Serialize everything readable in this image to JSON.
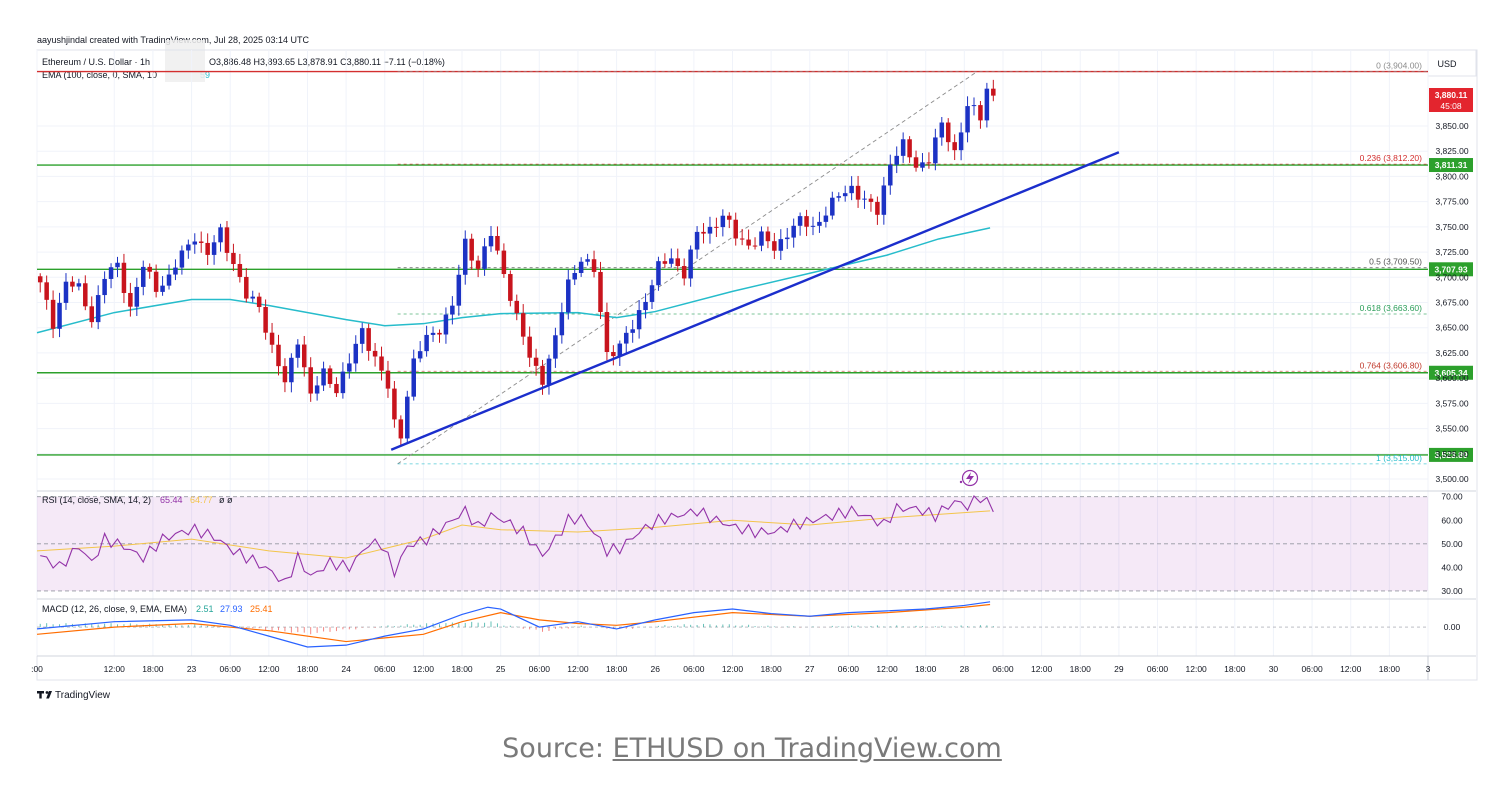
{
  "header": {
    "author_line": "aayushjindal created with TradingView.com, Jul 28, 2025 03:14 UTC",
    "symbol": "Ethereum / U.S. Dollar · 1h",
    "ohlc": "O3,886.48  H3,893.65  L3,878.91  C3,880.11  −7.11 (−0.18%)",
    "ema_label": "EMA (100, close, 0, SMA, 10",
    "ema_value": "59"
  },
  "currency": "USD",
  "brand": "TradingView",
  "caption": {
    "prefix": "Source: ",
    "link": "ETHUSD on TradingView.com"
  },
  "colors": {
    "candle_up": "#1c32c4",
    "candle_down": "#c8141d",
    "ema": "#26bccb",
    "trendline": "#1b2ecc",
    "support": "#2ca02c",
    "resistance": "#d32f2f",
    "rsi": "#9333a8",
    "rsi_ma": "#f3c54a",
    "macd": "#2962ff",
    "signal": "#ff6d00"
  },
  "chart_data": {
    "type": "candlestick",
    "interval": "1h",
    "ylim": [
      3488,
      3920
    ],
    "y_ticks": [
      "3,850.00",
      "3,825.00",
      "3,800.00",
      "3,775.00",
      "3,750.00",
      "3,725.00",
      "3,700.00",
      "3,675.00",
      "3,650.00",
      "3,625.00",
      "3,600.00",
      "3,575.00",
      "3,550.00",
      "3,525.00",
      "3,500.00"
    ],
    "x_ticks": [
      {
        "label": ":00",
        "hour": 0
      },
      {
        "label": "12:00",
        "hour": 12
      },
      {
        "label": "18:00",
        "hour": 18
      },
      {
        "label": "23",
        "hour": 24
      },
      {
        "label": "06:00",
        "hour": 30
      },
      {
        "label": "12:00",
        "hour": 36
      },
      {
        "label": "18:00",
        "hour": 42
      },
      {
        "label": "24",
        "hour": 48
      },
      {
        "label": "06:00",
        "hour": 54
      },
      {
        "label": "12:00",
        "hour": 60
      },
      {
        "label": "18:00",
        "hour": 66
      },
      {
        "label": "25",
        "hour": 72
      },
      {
        "label": "06:00",
        "hour": 78
      },
      {
        "label": "12:00",
        "hour": 84
      },
      {
        "label": "18:00",
        "hour": 90
      },
      {
        "label": "26",
        "hour": 96
      },
      {
        "label": "06:00",
        "hour": 102
      },
      {
        "label": "12:00",
        "hour": 108
      },
      {
        "label": "18:00",
        "hour": 114
      },
      {
        "label": "27",
        "hour": 120
      },
      {
        "label": "06:00",
        "hour": 126
      },
      {
        "label": "12:00",
        "hour": 132
      },
      {
        "label": "18:00",
        "hour": 138
      },
      {
        "label": "28",
        "hour": 144
      },
      {
        "label": "06:00",
        "hour": 150
      },
      {
        "label": "12:00",
        "hour": 156
      },
      {
        "label": "18:00",
        "hour": 162
      },
      {
        "label": "29",
        "hour": 168
      },
      {
        "label": "06:00",
        "hour": 174
      },
      {
        "label": "12:00",
        "hour": 180
      },
      {
        "label": "18:00",
        "hour": 186
      },
      {
        "label": "30",
        "hour": 192
      },
      {
        "label": "06:00",
        "hour": 198
      },
      {
        "label": "12:00",
        "hour": 204
      },
      {
        "label": "18:00",
        "hour": 210
      },
      {
        "label": "3",
        "hour": 216
      }
    ],
    "anchors": [
      {
        "hour": 0,
        "price": 3692
      },
      {
        "hour": 2,
        "price": 3655
      },
      {
        "hour": 4,
        "price": 3695
      },
      {
        "hour": 6,
        "price": 3688
      },
      {
        "hour": 8,
        "price": 3660
      },
      {
        "hour": 10,
        "price": 3700
      },
      {
        "hour": 12,
        "price": 3712
      },
      {
        "hour": 14,
        "price": 3670
      },
      {
        "hour": 16,
        "price": 3710
      },
      {
        "hour": 18,
        "price": 3690
      },
      {
        "hour": 20,
        "price": 3700
      },
      {
        "hour": 22,
        "price": 3722
      },
      {
        "hour": 24,
        "price": 3742
      },
      {
        "hour": 26,
        "price": 3722
      },
      {
        "hour": 28,
        "price": 3745
      },
      {
        "hour": 30,
        "price": 3715
      },
      {
        "hour": 32,
        "price": 3680
      },
      {
        "hour": 34,
        "price": 3672
      },
      {
        "hour": 36,
        "price": 3630
      },
      {
        "hour": 38,
        "price": 3594
      },
      {
        "hour": 40,
        "price": 3640
      },
      {
        "hour": 42,
        "price": 3582
      },
      {
        "hour": 44,
        "price": 3605
      },
      {
        "hour": 46,
        "price": 3590
      },
      {
        "hour": 48,
        "price": 3615
      },
      {
        "hour": 50,
        "price": 3648
      },
      {
        "hour": 52,
        "price": 3620
      },
      {
        "hour": 54,
        "price": 3590
      },
      {
        "hour": 55,
        "price": 3555
      },
      {
        "hour": 56,
        "price": 3545
      },
      {
        "hour": 57,
        "price": 3585
      },
      {
        "hour": 58,
        "price": 3615
      },
      {
        "hour": 60,
        "price": 3640
      },
      {
        "hour": 62,
        "price": 3650
      },
      {
        "hour": 64,
        "price": 3670
      },
      {
        "hour": 66,
        "price": 3735
      },
      {
        "hour": 68,
        "price": 3710
      },
      {
        "hour": 70,
        "price": 3742
      },
      {
        "hour": 72,
        "price": 3705
      },
      {
        "hour": 74,
        "price": 3660
      },
      {
        "hour": 76,
        "price": 3620
      },
      {
        "hour": 78,
        "price": 3600
      },
      {
        "hour": 80,
        "price": 3638
      },
      {
        "hour": 82,
        "price": 3695
      },
      {
        "hour": 84,
        "price": 3720
      },
      {
        "hour": 86,
        "price": 3705
      },
      {
        "hour": 88,
        "price": 3625
      },
      {
        "hour": 90,
        "price": 3632
      },
      {
        "hour": 92,
        "price": 3650
      },
      {
        "hour": 94,
        "price": 3680
      },
      {
        "hour": 96,
        "price": 3710
      },
      {
        "hour": 98,
        "price": 3718
      },
      {
        "hour": 100,
        "price": 3705
      },
      {
        "hour": 102,
        "price": 3742
      },
      {
        "hour": 104,
        "price": 3748
      },
      {
        "hour": 106,
        "price": 3762
      },
      {
        "hour": 108,
        "price": 3740
      },
      {
        "hour": 110,
        "price": 3733
      },
      {
        "hour": 112,
        "price": 3740
      },
      {
        "hour": 114,
        "price": 3728
      },
      {
        "hour": 116,
        "price": 3745
      },
      {
        "hour": 118,
        "price": 3755
      },
      {
        "hour": 120,
        "price": 3750
      },
      {
        "hour": 122,
        "price": 3765
      },
      {
        "hour": 124,
        "price": 3780
      },
      {
        "hour": 126,
        "price": 3790
      },
      {
        "hour": 128,
        "price": 3775
      },
      {
        "hour": 130,
        "price": 3765
      },
      {
        "hour": 132,
        "price": 3815
      },
      {
        "hour": 134,
        "price": 3830
      },
      {
        "hour": 136,
        "price": 3810
      },
      {
        "hour": 138,
        "price": 3818
      },
      {
        "hour": 140,
        "price": 3850
      },
      {
        "hour": 142,
        "price": 3825
      },
      {
        "hour": 144,
        "price": 3870
      },
      {
        "hour": 146,
        "price": 3858
      },
      {
        "hour": 147,
        "price": 3888
      },
      {
        "hour": 148,
        "price": 3880
      }
    ],
    "ema100": [
      {
        "hour": 0,
        "price": 3645
      },
      {
        "hour": 12,
        "price": 3665
      },
      {
        "hour": 24,
        "price": 3678
      },
      {
        "hour": 30,
        "price": 3678
      },
      {
        "hour": 36,
        "price": 3672
      },
      {
        "hour": 48,
        "price": 3658
      },
      {
        "hour": 54,
        "price": 3652
      },
      {
        "hour": 60,
        "price": 3654
      },
      {
        "hour": 66,
        "price": 3660
      },
      {
        "hour": 72,
        "price": 3664
      },
      {
        "hour": 84,
        "price": 3665
      },
      {
        "hour": 90,
        "price": 3660
      },
      {
        "hour": 96,
        "price": 3666
      },
      {
        "hour": 108,
        "price": 3686
      },
      {
        "hour": 120,
        "price": 3704
      },
      {
        "hour": 132,
        "price": 3722
      },
      {
        "hour": 140,
        "price": 3738
      },
      {
        "hour": 148,
        "price": 3749
      }
    ],
    "trendline": {
      "from": {
        "hour": 55,
        "price": 3529
      },
      "to": {
        "hour": 168,
        "price": 3824
      }
    },
    "fibonacci": {
      "from": {
        "hour": 56,
        "price": 3515
      },
      "to": {
        "hour": 146,
        "price": 3904
      },
      "levels": [
        {
          "ratio": "0",
          "price": 3904.0,
          "label": "0 (3,904.00)",
          "color": "#8c8c8c"
        },
        {
          "ratio": "0.236",
          "price": 3812.2,
          "label": "0.236 (3,812.20)",
          "color": "#d32f2f"
        },
        {
          "ratio": "0.5",
          "price": 3709.5,
          "label": "0.5 (3,709.50)",
          "color": "#555555"
        },
        {
          "ratio": "0.618",
          "price": 3663.6,
          "label": "0.618 (3,663.60)",
          "color": "#2a9d58"
        },
        {
          "ratio": "0.764",
          "price": 3606.8,
          "label": "0.764 (3,606.80)",
          "color": "#c0392b"
        },
        {
          "ratio": "1",
          "price": 3515.0,
          "label": "1 (3,515.00)",
          "color": "#26bccb"
        }
      ]
    },
    "horizontal_lines": [
      {
        "price": 3904.0,
        "color": "#d32f2f"
      },
      {
        "price": 3811.31,
        "label": "3,811.31",
        "color": "#2ca02c"
      },
      {
        "price": 3707.93,
        "label": "3,707.93",
        "color": "#2ca02c"
      },
      {
        "price": 3605.34,
        "label": "3,605.34",
        "color": "#2ca02c"
      },
      {
        "price": 3523.89,
        "label": "3,523.89",
        "color": "#2ca02c"
      }
    ],
    "last_price": {
      "label": "3,880.11",
      "countdown": "45:08",
      "price": 3880.11
    },
    "rsi": {
      "label": "RSI (14, close, SMA, 14, 2)",
      "value": "65.44",
      "ma_value": "64.77",
      "extra": "ø  ø",
      "ylim": [
        27,
        72
      ],
      "ticks": [
        "70.00",
        "60.00",
        "50.00",
        "40.00",
        "30.00"
      ],
      "upper": 70,
      "lower": 30,
      "mid": 50,
      "series": [
        {
          "hour": 0,
          "v": 45
        },
        {
          "hour": 3,
          "v": 40
        },
        {
          "hour": 6,
          "v": 49
        },
        {
          "hour": 8,
          "v": 42
        },
        {
          "hour": 10,
          "v": 52
        },
        {
          "hour": 13,
          "v": 49
        },
        {
          "hour": 16,
          "v": 44
        },
        {
          "hour": 19,
          "v": 52
        },
        {
          "hour": 22,
          "v": 55
        },
        {
          "hour": 24,
          "v": 56
        },
        {
          "hour": 27,
          "v": 53
        },
        {
          "hour": 30,
          "v": 47
        },
        {
          "hour": 33,
          "v": 43
        },
        {
          "hour": 36,
          "v": 38
        },
        {
          "hour": 38,
          "v": 33
        },
        {
          "hour": 40,
          "v": 44
        },
        {
          "hour": 42,
          "v": 36
        },
        {
          "hour": 45,
          "v": 42
        },
        {
          "hour": 48,
          "v": 40
        },
        {
          "hour": 51,
          "v": 50
        },
        {
          "hour": 53,
          "v": 50
        },
        {
          "hour": 55,
          "v": 38
        },
        {
          "hour": 57,
          "v": 49
        },
        {
          "hour": 60,
          "v": 52
        },
        {
          "hour": 63,
          "v": 58
        },
        {
          "hour": 66,
          "v": 64
        },
        {
          "hour": 68,
          "v": 57
        },
        {
          "hour": 70,
          "v": 62
        },
        {
          "hour": 72,
          "v": 60
        },
        {
          "hour": 75,
          "v": 55
        },
        {
          "hour": 78,
          "v": 45
        },
        {
          "hour": 80,
          "v": 52
        },
        {
          "hour": 82,
          "v": 60
        },
        {
          "hour": 84,
          "v": 61
        },
        {
          "hour": 86,
          "v": 55
        },
        {
          "hour": 88,
          "v": 47
        },
        {
          "hour": 90,
          "v": 48
        },
        {
          "hour": 93,
          "v": 55
        },
        {
          "hour": 96,
          "v": 60
        },
        {
          "hour": 99,
          "v": 62
        },
        {
          "hour": 102,
          "v": 64
        },
        {
          "hour": 105,
          "v": 60
        },
        {
          "hour": 108,
          "v": 57
        },
        {
          "hour": 111,
          "v": 55
        },
        {
          "hour": 114,
          "v": 55
        },
        {
          "hour": 117,
          "v": 58
        },
        {
          "hour": 120,
          "v": 60
        },
        {
          "hour": 123,
          "v": 62
        },
        {
          "hour": 126,
          "v": 64
        },
        {
          "hour": 129,
          "v": 61
        },
        {
          "hour": 131,
          "v": 58
        },
        {
          "hour": 133,
          "v": 65
        },
        {
          "hour": 136,
          "v": 65
        },
        {
          "hour": 139,
          "v": 62
        },
        {
          "hour": 142,
          "v": 68
        },
        {
          "hour": 144,
          "v": 66
        },
        {
          "hour": 146,
          "v": 70
        },
        {
          "hour": 148,
          "v": 65
        }
      ],
      "ma_series": [
        {
          "hour": 0,
          "v": 47
        },
        {
          "hour": 12,
          "v": 49
        },
        {
          "hour": 24,
          "v": 52
        },
        {
          "hour": 36,
          "v": 47
        },
        {
          "hour": 48,
          "v": 44
        },
        {
          "hour": 60,
          "v": 52
        },
        {
          "hour": 66,
          "v": 58
        },
        {
          "hour": 72,
          "v": 56
        },
        {
          "hour": 84,
          "v": 55
        },
        {
          "hour": 96,
          "v": 57
        },
        {
          "hour": 108,
          "v": 60
        },
        {
          "hour": 120,
          "v": 58
        },
        {
          "hour": 132,
          "v": 61
        },
        {
          "hour": 148,
          "v": 64
        }
      ]
    },
    "macd": {
      "label": "MACD (12, 26, close, 9, EMA, EMA)",
      "hist_value": "2.51",
      "macd_value": "27.93",
      "signal_value": "25.41",
      "ylim": [
        -32,
        30
      ],
      "ticks": [
        "0.00"
      ],
      "macd_series": [
        {
          "hour": 0,
          "v": -2
        },
        {
          "hour": 12,
          "v": 6
        },
        {
          "hour": 24,
          "v": 8
        },
        {
          "hour": 30,
          "v": 2
        },
        {
          "hour": 36,
          "v": -10
        },
        {
          "hour": 42,
          "v": -22
        },
        {
          "hour": 48,
          "v": -20
        },
        {
          "hour": 54,
          "v": -10
        },
        {
          "hour": 60,
          "v": -2
        },
        {
          "hour": 66,
          "v": 14
        },
        {
          "hour": 70,
          "v": 22
        },
        {
          "hour": 72,
          "v": 20
        },
        {
          "hour": 78,
          "v": 0
        },
        {
          "hour": 84,
          "v": 6
        },
        {
          "hour": 90,
          "v": -2
        },
        {
          "hour": 96,
          "v": 8
        },
        {
          "hour": 102,
          "v": 16
        },
        {
          "hour": 108,
          "v": 20
        },
        {
          "hour": 114,
          "v": 15
        },
        {
          "hour": 120,
          "v": 12
        },
        {
          "hour": 126,
          "v": 16
        },
        {
          "hour": 132,
          "v": 18
        },
        {
          "hour": 138,
          "v": 20
        },
        {
          "hour": 144,
          "v": 24
        },
        {
          "hour": 148,
          "v": 28
        }
      ],
      "signal_series": [
        {
          "hour": 0,
          "v": -8
        },
        {
          "hour": 12,
          "v": 0
        },
        {
          "hour": 24,
          "v": 4
        },
        {
          "hour": 36,
          "v": -4
        },
        {
          "hour": 48,
          "v": -16
        },
        {
          "hour": 60,
          "v": -8
        },
        {
          "hour": 66,
          "v": 6
        },
        {
          "hour": 72,
          "v": 16
        },
        {
          "hour": 78,
          "v": 8
        },
        {
          "hour": 84,
          "v": 4
        },
        {
          "hour": 90,
          "v": 2
        },
        {
          "hour": 96,
          "v": 6
        },
        {
          "hour": 108,
          "v": 16
        },
        {
          "hour": 120,
          "v": 12
        },
        {
          "hour": 132,
          "v": 16
        },
        {
          "hour": 144,
          "v": 22
        },
        {
          "hour": 148,
          "v": 25
        }
      ]
    }
  }
}
